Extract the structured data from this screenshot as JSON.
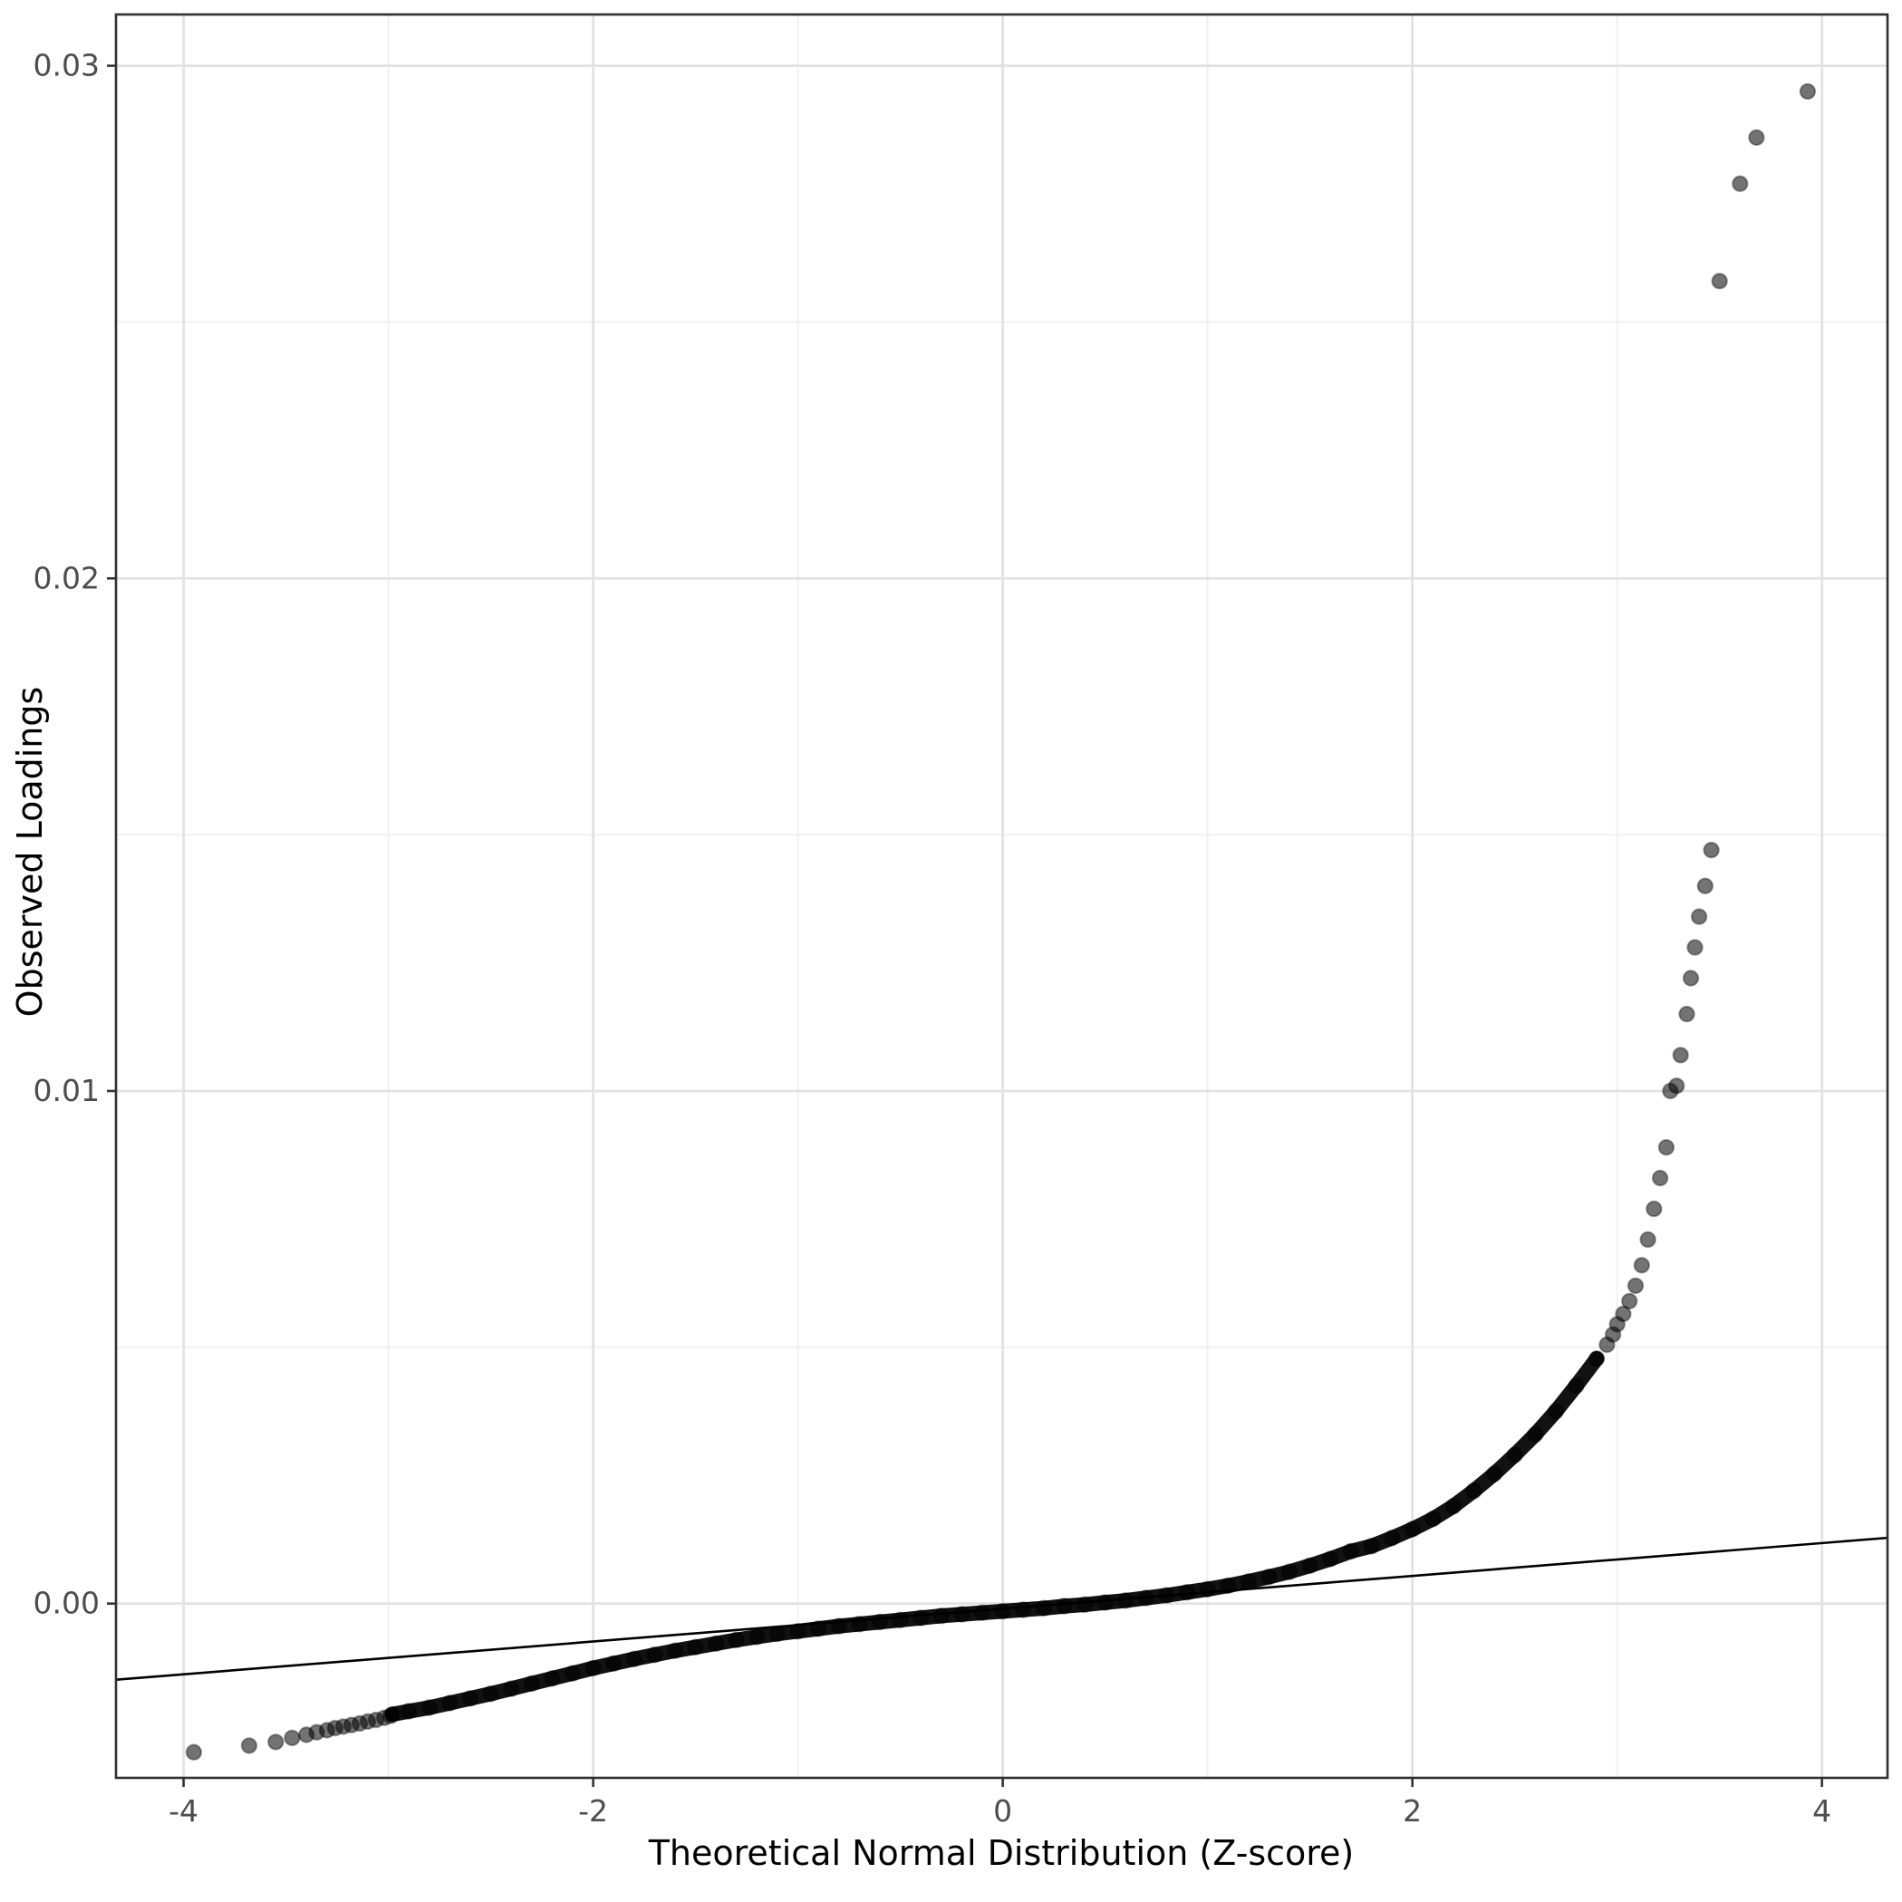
{
  "chart_data": {
    "type": "scatter",
    "title": "",
    "xlabel": "Theoretical Normal Distribution (Z-score)",
    "ylabel": "Observed Loadings",
    "xlim": [
      -4.33,
      4.32
    ],
    "ylim": [
      -0.0034,
      0.031
    ],
    "grid": true,
    "legend": false,
    "x_ticks": {
      "major": [
        -4,
        -2,
        0,
        2,
        4
      ],
      "minor": [
        -3,
        -1,
        1,
        3
      ],
      "labels": [
        "-4",
        "-2",
        "0",
        "2",
        "4"
      ]
    },
    "y_ticks": {
      "major": [
        0,
        0.01,
        0.02,
        0.03
      ],
      "minor": [
        0.005,
        0.015,
        0.025
      ],
      "labels": [
        "0.00",
        "0.01",
        "0.02",
        "0.03"
      ]
    },
    "point_style": {
      "color": "#000000",
      "opacity": 0.55,
      "radius": 8.2
    },
    "reference_line": {
      "slope": 0.00032,
      "intercept": -0.0001,
      "color": "#000000"
    },
    "band_curve": [
      [
        -2.98,
        -0.00216
      ],
      [
        -2.9,
        -0.0021
      ],
      [
        -2.8,
        -0.00203
      ],
      [
        -2.7,
        -0.00194
      ],
      [
        -2.6,
        -0.00185
      ],
      [
        -2.5,
        -0.00176
      ],
      [
        -2.4,
        -0.00166
      ],
      [
        -2.3,
        -0.00156
      ],
      [
        -2.2,
        -0.00146
      ],
      [
        -2.1,
        -0.00136
      ],
      [
        -2.0,
        -0.00126
      ],
      [
        -1.9,
        -0.00117
      ],
      [
        -1.8,
        -0.00108
      ],
      [
        -1.7,
        -0.001
      ],
      [
        -1.6,
        -0.00092
      ],
      [
        -1.5,
        -0.00085
      ],
      [
        -1.4,
        -0.00078
      ],
      [
        -1.3,
        -0.00071
      ],
      [
        -1.2,
        -0.00065
      ],
      [
        -1.1,
        -0.00059
      ],
      [
        -1.0,
        -0.00054
      ],
      [
        -0.9,
        -0.00049
      ],
      [
        -0.8,
        -0.00044
      ],
      [
        -0.7,
        -0.0004
      ],
      [
        -0.6,
        -0.00036
      ],
      [
        -0.5,
        -0.00032
      ],
      [
        -0.4,
        -0.00028
      ],
      [
        -0.3,
        -0.00024
      ],
      [
        -0.2,
        -0.00021
      ],
      [
        -0.1,
        -0.00018
      ],
      [
        0,
        -0.00015
      ],
      [
        0.1,
        -0.00012
      ],
      [
        0.2,
        -9e-05
      ],
      [
        0.3,
        -5e-05
      ],
      [
        0.4,
        -2e-05
      ],
      [
        0.5,
        2e-05
      ],
      [
        0.6,
        6e-05
      ],
      [
        0.7,
        0.00011
      ],
      [
        0.8,
        0.00016
      ],
      [
        0.9,
        0.00022
      ],
      [
        1.0,
        0.00028
      ],
      [
        1.1,
        0.00035
      ],
      [
        1.2,
        0.00043
      ],
      [
        1.3,
        0.00052
      ],
      [
        1.4,
        0.00062
      ],
      [
        1.5,
        0.00074
      ],
      [
        1.6,
        0.00087
      ],
      [
        1.7,
        0.00102
      ],
      [
        1.8,
        0.00112
      ],
      [
        1.9,
        0.00128
      ],
      [
        2.0,
        0.00145
      ],
      [
        2.1,
        0.00165
      ],
      [
        2.2,
        0.0019
      ],
      [
        2.3,
        0.0022
      ],
      [
        2.4,
        0.00253
      ],
      [
        2.5,
        0.0029
      ],
      [
        2.6,
        0.0033
      ],
      [
        2.7,
        0.00375
      ],
      [
        2.8,
        0.00425
      ],
      [
        2.9,
        0.00478
      ]
    ],
    "left_tail_points": [
      [
        -3.95,
        -0.0029
      ],
      [
        -3.68,
        -0.00277
      ],
      [
        -3.55,
        -0.0027
      ],
      [
        -3.47,
        -0.00262
      ],
      [
        -3.4,
        -0.00256
      ],
      [
        -3.35,
        -0.00251
      ],
      [
        -3.3,
        -0.00247
      ],
      [
        -3.26,
        -0.00243
      ],
      [
        -3.22,
        -0.0024
      ],
      [
        -3.18,
        -0.00237
      ],
      [
        -3.14,
        -0.00234
      ],
      [
        -3.1,
        -0.0023
      ],
      [
        -3.06,
        -0.00227
      ],
      [
        -3.02,
        -0.00223
      ],
      [
        -2.99,
        -0.00219
      ]
    ],
    "right_tail_points": [
      [
        2.95,
        0.00505
      ],
      [
        2.98,
        0.00525
      ],
      [
        3.0,
        0.00545
      ],
      [
        3.03,
        0.00565
      ],
      [
        3.06,
        0.0059
      ],
      [
        3.09,
        0.0062
      ],
      [
        3.12,
        0.0066
      ],
      [
        3.15,
        0.0071
      ],
      [
        3.18,
        0.0077
      ],
      [
        3.21,
        0.0083
      ],
      [
        3.24,
        0.0089
      ],
      [
        3.26,
        0.01
      ],
      [
        3.29,
        0.0101
      ],
      [
        3.31,
        0.0107
      ],
      [
        3.34,
        0.0115
      ],
      [
        3.36,
        0.0122
      ],
      [
        3.38,
        0.0128
      ],
      [
        3.4,
        0.0134
      ],
      [
        3.43,
        0.014
      ],
      [
        3.46,
        0.0147
      ]
    ],
    "top_outlier_points": [
      [
        3.5,
        0.0258
      ],
      [
        3.6,
        0.0277
      ],
      [
        3.68,
        0.0286
      ],
      [
        3.93,
        0.0295
      ]
    ]
  }
}
